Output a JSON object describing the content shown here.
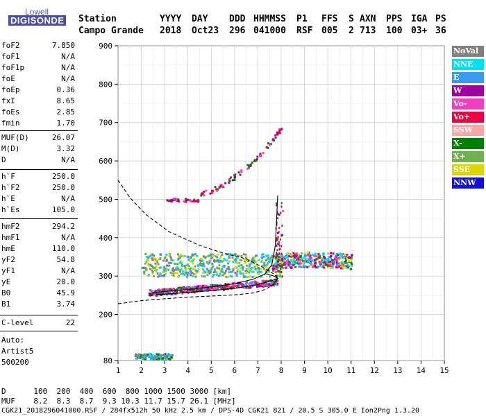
{
  "logo": {
    "line1": "Lowell",
    "line2": "DIGISONDE"
  },
  "header": {
    "row1": [
      "Station",
      "YYYY",
      "DAY",
      "DDD",
      "HHMMSS",
      "P1",
      "FFS",
      "S",
      "AXN",
      "PPS",
      "IGA",
      "PS"
    ],
    "row2": [
      "Campo Grande",
      "2018",
      "Oct23",
      "296",
      "041000",
      "RSF",
      "005",
      "2",
      "713",
      "100",
      "03+",
      "36"
    ]
  },
  "params": [
    {
      "k": "foF2",
      "v": "7.850"
    },
    {
      "k": "foF1",
      "v": "N/A"
    },
    {
      "k": "foF1p",
      "v": "N/A"
    },
    {
      "k": "foE",
      "v": "N/A"
    },
    {
      "k": "foEp",
      "v": "0.36"
    },
    {
      "k": "fxI",
      "v": "8.65"
    },
    {
      "k": "foEs",
      "v": "2.85"
    },
    {
      "k": "fmin",
      "v": "1.70"
    },
    {
      "k": "MUF(D)",
      "v": "26.07"
    },
    {
      "k": "M(D)",
      "v": "3.32"
    },
    {
      "k": "D",
      "v": "N/A"
    },
    {
      "k": "h`F",
      "v": "250.0"
    },
    {
      "k": "h`F2",
      "v": "250.0"
    },
    {
      "k": "h`E",
      "v": "N/A"
    },
    {
      "k": "h`Es",
      "v": "105.0"
    },
    {
      "k": "hmF2",
      "v": "294.2"
    },
    {
      "k": "hmF1",
      "v": "N/A"
    },
    {
      "k": "hmE",
      "v": "110.0"
    },
    {
      "k": "yF2",
      "v": "54.8"
    },
    {
      "k": "yF1",
      "v": "N/A"
    },
    {
      "k": "yE",
      "v": "20.0"
    },
    {
      "k": "B0",
      "v": "45.9"
    },
    {
      "k": "B1",
      "v": "3.74"
    },
    {
      "k": "C-level",
      "v": "22"
    }
  ],
  "auto": {
    "l1": "Auto:",
    "l2": "Artist5",
    "l3": "500200"
  },
  "legend": [
    {
      "label": "NoVal",
      "color": "#808080"
    },
    {
      "label": "NNE",
      "color": "#00e0f0"
    },
    {
      "label": "E",
      "color": "#3a9af0"
    },
    {
      "label": "W",
      "color": "#a000a0"
    },
    {
      "label": "Vo-",
      "color": "#f040c0"
    },
    {
      "label": "Vo+",
      "color": "#f00040"
    },
    {
      "label": "SSW",
      "color": "#f8a8a8"
    },
    {
      "label": "X-",
      "color": "#008000"
    },
    {
      "label": "X+",
      "color": "#70b050"
    },
    {
      "label": "SSE",
      "color": "#d8d800"
    },
    {
      "label": "NNW",
      "color": "#1010d0"
    }
  ],
  "footer": {
    "d_row": "D      100  200  400  600  800 1000 1500 3000 [km]",
    "muf_row": "MUF    8.2  8.3  8.7  9.3 10.3 11.7 15.7 26.1 [MHz]",
    "file_row": "CGK21_2018296041000.RSF / 284fx512h 50 kHz 2.5 km / DPS-4D CGK21 821 / 20.5 S 305.0 E Ion2Png 1.3.20"
  },
  "chart_data": {
    "type": "scatter",
    "xlim": [
      1,
      15
    ],
    "ylim": [
      80,
      900
    ],
    "x_ticks": [
      1,
      2,
      3,
      4,
      5,
      6,
      7,
      8,
      9,
      10,
      11,
      12,
      13,
      14,
      15
    ],
    "y_ticks": [
      80,
      200,
      300,
      400,
      500,
      600,
      700,
      800,
      900
    ],
    "grid": true,
    "clusters": [
      {
        "name": "Es",
        "x": [
          1.7,
          3.3
        ],
        "y": [
          85,
          100
        ],
        "colors": [
          "#3a9af0",
          "#00e0f0",
          "#808080",
          "#008000"
        ]
      },
      {
        "name": "F-low",
        "x": [
          2.3,
          7.8
        ],
        "y": [
          255,
          300
        ],
        "colors": [
          "#f00040",
          "#f040c0",
          "#a000a0",
          "#008000",
          "#3a9af0"
        ]
      },
      {
        "name": "F-mid",
        "x": [
          2.0,
          8.0
        ],
        "y": [
          300,
          360
        ],
        "colors": [
          "#d8d800",
          "#3a9af0",
          "#00e0f0",
          "#808080",
          "#70b050"
        ]
      },
      {
        "name": "F-cusp",
        "x": [
          7.6,
          11.0
        ],
        "y": [
          300,
          390
        ],
        "colors": [
          "#d8d800",
          "#a000a0",
          "#f040c0",
          "#008000",
          "#00e0f0",
          "#3a9af0",
          "#f00040"
        ]
      },
      {
        "name": "2F",
        "x": [
          3.0,
          8.0
        ],
        "y": [
          495,
          700
        ],
        "colors": [
          "#f00040",
          "#a000a0",
          "#f040c0",
          "#008000"
        ]
      }
    ],
    "profile_solid": [
      [
        2.3,
        255
      ],
      [
        3,
        260
      ],
      [
        4,
        265
      ],
      [
        5,
        272
      ],
      [
        6,
        280
      ],
      [
        6.8,
        292
      ],
      [
        7.3,
        305
      ],
      [
        7.6,
        330
      ],
      [
        7.75,
        380
      ],
      [
        7.85,
        510
      ]
    ],
    "profile_solid_lower": [
      [
        2.3,
        250
      ],
      [
        3.5,
        255
      ],
      [
        5,
        262
      ],
      [
        6,
        268
      ],
      [
        7,
        278
      ],
      [
        7.6,
        288
      ],
      [
        7.85,
        294
      ],
      [
        7.7,
        300
      ],
      [
        7.4,
        305
      ]
    ],
    "profile_dashed_lower": [
      [
        1,
        228
      ],
      [
        2,
        236
      ],
      [
        3,
        241
      ],
      [
        4,
        245
      ],
      [
        5,
        248
      ],
      [
        6,
        251
      ],
      [
        6.8,
        256
      ],
      [
        7.3,
        265
      ],
      [
        7.7,
        279
      ],
      [
        7.85,
        294
      ]
    ],
    "profile_dashed_upper": [
      [
        1,
        550
      ],
      [
        1.5,
        505
      ],
      [
        2.2,
        460
      ],
      [
        3.2,
        415
      ],
      [
        4.5,
        380
      ],
      [
        5.5,
        360
      ],
      [
        6.5,
        345
      ],
      [
        7.3,
        320
      ],
      [
        7.7,
        305
      ],
      [
        7.85,
        294
      ]
    ]
  }
}
